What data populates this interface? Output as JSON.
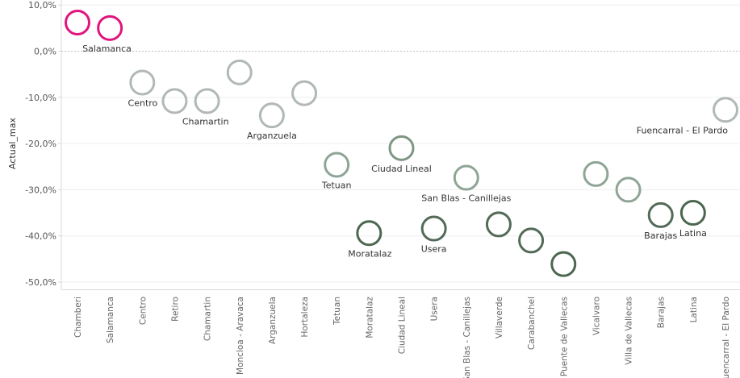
{
  "chart_data": {
    "type": "scatter",
    "ylabel": "Actual_max",
    "ylim": [
      -52,
      10
    ],
    "yticks": [
      10,
      0,
      -10,
      -20,
      -30,
      -40,
      -50
    ],
    "ytick_labels": [
      "10,0%",
      "0,0%",
      "-10,0%",
      "-20,0%",
      "-30,0%",
      "-40,0%",
      "-50,0%"
    ],
    "reference_line": 0,
    "grid": "horizontal",
    "marker": "open-circle",
    "categories": [
      "Chamberi",
      "Salamanca",
      "Centro",
      "Retiro",
      "Chamartin",
      "Moncloa - Aravaca",
      "Arganzuela",
      "Hortaleza",
      "Tetuan",
      "Moratalaz",
      "Ciudad Lineal",
      "Usera",
      "San Blas - Canillejas",
      "Villaverde",
      "Carabanchel",
      "Puente de Vallecas",
      "Vicalvaro",
      "Villa de Vallecas",
      "Barajas",
      "Latina",
      "Fuencarral - El Pardo"
    ],
    "values": [
      6.2,
      5.0,
      -6.8,
      -10.8,
      -10.8,
      -4.6,
      -13.9,
      -9.1,
      -24.6,
      -39.4,
      -21.0,
      -38.4,
      -27.4,
      -37.5,
      -41.0,
      -46.1,
      -26.6,
      -30.0,
      -35.5,
      -35.0,
      -12.7
    ],
    "colors": [
      "#e0157e",
      "#e0157e",
      "#b1b9b4",
      "#b1b9b4",
      "#b1b9b4",
      "#b1b9b4",
      "#b1b9b4",
      "#b1b9b4",
      "#8ea596",
      "#4c6750",
      "#7f9684",
      "#536a58",
      "#8ea596",
      "#536a58",
      "#536a58",
      "#4c6750",
      "#8ea596",
      "#8ea596",
      "#536a58",
      "#4c6750",
      "#b1b9b4"
    ],
    "point_labels": [
      "",
      "Salamanca",
      "Centro",
      "",
      "Chamartin",
      "",
      "Arganzuela",
      "",
      "Tetuan",
      "Moratalaz",
      "Ciudad Lineal",
      "Usera",
      "San Blas - Canillejas",
      "",
      "",
      "",
      "",
      "",
      "Barajas",
      "Latina",
      "Fuencarral - El Pardo"
    ],
    "point_label_positions": [
      "",
      "below-right",
      "below-left",
      "",
      "below-left",
      "",
      "below",
      "",
      "below",
      "below-left",
      "below",
      "below",
      "below",
      "",
      "",
      "",
      "",
      "",
      "below",
      "below",
      "below-left"
    ]
  }
}
